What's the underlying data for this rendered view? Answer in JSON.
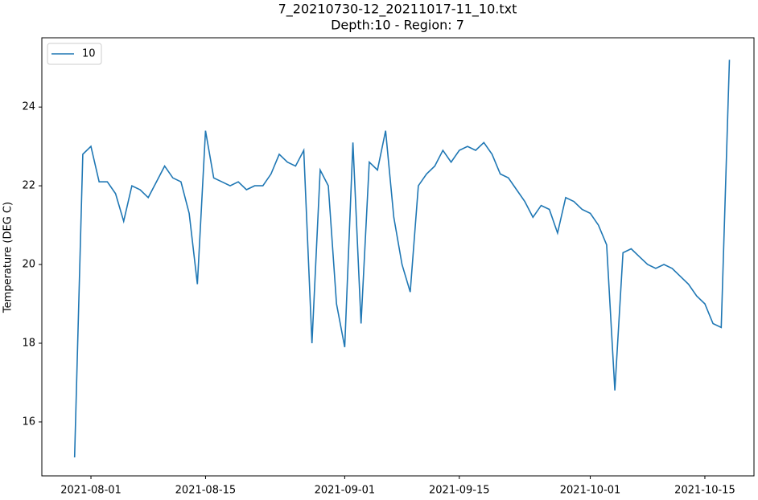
{
  "chart_data": {
    "type": "line",
    "title": "7_20210730-12_20211017-11_10.txt",
    "subtitle": "Depth:10 - Region: 7",
    "y_label": "Temperature (DEG C)",
    "x": [
      "2021-07-30",
      "2021-07-31",
      "2021-08-01",
      "2021-08-02",
      "2021-08-03",
      "2021-08-04",
      "2021-08-05",
      "2021-08-06",
      "2021-08-07",
      "2021-08-08",
      "2021-08-09",
      "2021-08-10",
      "2021-08-11",
      "2021-08-12",
      "2021-08-13",
      "2021-08-14",
      "2021-08-15",
      "2021-08-16",
      "2021-08-17",
      "2021-08-18",
      "2021-08-19",
      "2021-08-20",
      "2021-08-21",
      "2021-08-22",
      "2021-08-23",
      "2021-08-24",
      "2021-08-25",
      "2021-08-26",
      "2021-08-27",
      "2021-08-28",
      "2021-08-29",
      "2021-08-30",
      "2021-08-31",
      "2021-09-01",
      "2021-09-02",
      "2021-09-03",
      "2021-09-04",
      "2021-09-05",
      "2021-09-06",
      "2021-09-07",
      "2021-09-08",
      "2021-09-09",
      "2021-09-10",
      "2021-09-11",
      "2021-09-12",
      "2021-09-13",
      "2021-09-14",
      "2021-09-15",
      "2021-09-16",
      "2021-09-17",
      "2021-09-18",
      "2021-09-19",
      "2021-09-20",
      "2021-09-21",
      "2021-09-22",
      "2021-09-23",
      "2021-09-24",
      "2021-09-25",
      "2021-09-26",
      "2021-09-27",
      "2021-09-28",
      "2021-09-29",
      "2021-09-30",
      "2021-10-01",
      "2021-10-02",
      "2021-10-03",
      "2021-10-04",
      "2021-10-05",
      "2021-10-06",
      "2021-10-07",
      "2021-10-08",
      "2021-10-09",
      "2021-10-10",
      "2021-10-11",
      "2021-10-12",
      "2021-10-13",
      "2021-10-14",
      "2021-10-15",
      "2021-10-16",
      "2021-10-17",
      "2021-10-18"
    ],
    "series": [
      {
        "name": "10",
        "color": "#1f77b4",
        "values": [
          15.1,
          22.8,
          23.0,
          22.1,
          22.1,
          21.8,
          21.1,
          22.0,
          21.9,
          21.7,
          22.1,
          22.5,
          22.2,
          22.1,
          21.3,
          19.5,
          23.4,
          22.2,
          22.1,
          22.0,
          22.1,
          21.9,
          22.0,
          22.0,
          22.3,
          22.8,
          22.6,
          22.5,
          22.9,
          18.0,
          22.4,
          22.0,
          19.0,
          17.9,
          23.1,
          18.5,
          22.6,
          22.4,
          23.4,
          21.2,
          20.0,
          19.3,
          22.0,
          22.3,
          22.5,
          22.9,
          22.6,
          22.9,
          23.0,
          22.9,
          23.1,
          22.8,
          22.3,
          22.2,
          21.9,
          21.6,
          21.2,
          21.5,
          21.4,
          20.8,
          21.7,
          21.6,
          21.4,
          21.3,
          21.0,
          20.5,
          16.8,
          20.3,
          20.4,
          20.2,
          20.0,
          19.9,
          20.0,
          19.9,
          19.7,
          19.5,
          19.2,
          19.0,
          18.5,
          18.4,
          25.2
        ]
      }
    ],
    "xlim": [
      "2021-07-26",
      "2021-10-21"
    ],
    "xticks": [
      "2021-08-01",
      "2021-08-15",
      "2021-09-01",
      "2021-09-15",
      "2021-10-01",
      "2021-10-15"
    ],
    "ylim": [
      14.63,
      25.76
    ],
    "yticks": [
      16,
      18,
      20,
      22,
      24
    ],
    "legend": "upper left"
  }
}
